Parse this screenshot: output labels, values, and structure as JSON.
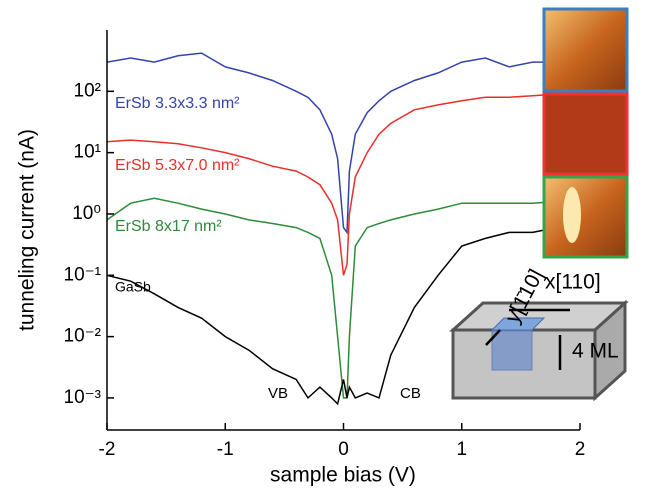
{
  "chart_data": {
    "type": "line",
    "x_label": "sample bias (V)",
    "y_label": "tunneling current (nA)",
    "yscale": "log",
    "xlim": [
      -2,
      2
    ],
    "xticks": [
      -2,
      -1,
      0,
      1,
      2
    ],
    "ylim": [
      0.0003,
      1000
    ],
    "yticks": [
      {
        "value": 0.001,
        "label": "10⁻³"
      },
      {
        "value": 0.01,
        "label": "10⁻²"
      },
      {
        "value": 0.1,
        "label": "10⁻¹"
      },
      {
        "value": 1,
        "label": "10⁰"
      },
      {
        "value": 10,
        "label": "10¹"
      },
      {
        "value": 100,
        "label": "10²"
      }
    ],
    "x": [
      -2,
      -1.8,
      -1.6,
      -1.4,
      -1.2,
      -1.0,
      -0.8,
      -0.6,
      -0.4,
      -0.3,
      -0.2,
      -0.1,
      -0.05,
      0,
      0.03,
      0.05,
      0.1,
      0.2,
      0.3,
      0.4,
      0.6,
      0.8,
      1.0,
      1.2,
      1.4,
      1.6,
      1.8,
      2
    ],
    "series": [
      {
        "name": "ErSb 3.3x3.3 nm²",
        "color": "#3344aa",
        "values": [
          300,
          350,
          300,
          380,
          420,
          250,
          200,
          150,
          100,
          80,
          50,
          20,
          8,
          0.6,
          0.5,
          5,
          20,
          45,
          70,
          100,
          150,
          200,
          300,
          350,
          250,
          300,
          300,
          350
        ]
      },
      {
        "name": "ErSb 5.3x7.0 nm²",
        "color": "#e8302a",
        "values": [
          15,
          16,
          15,
          14,
          12,
          10,
          8,
          6,
          5,
          4,
          3,
          1.5,
          0.8,
          0.1,
          0.15,
          1,
          4,
          10,
          20,
          30,
          50,
          60,
          70,
          80,
          80,
          85,
          90,
          100
        ]
      },
      {
        "name": "ErSb 8x17 nm²",
        "color": "#2e8b3a",
        "values": [
          0.8,
          1.5,
          1.8,
          1.5,
          1.2,
          1.0,
          0.8,
          0.7,
          0.6,
          0.5,
          0.4,
          0.1,
          0.01,
          0.001,
          0.001,
          0.01,
          0.3,
          0.6,
          0.7,
          0.8,
          1.0,
          1.2,
          1.5,
          1.5,
          1.5,
          1.5,
          1.6,
          1.8
        ]
      },
      {
        "name": "GaSb",
        "color": "#000000",
        "values": [
          0.1,
          0.08,
          0.05,
          0.03,
          0.02,
          0.01,
          0.006,
          0.003,
          0.002,
          0.001,
          0.0015,
          0.001,
          0.0008,
          0.002,
          0.001,
          0.0015,
          0.001,
          0.0012,
          0.001,
          0.005,
          0.03,
          0.1,
          0.3,
          0.4,
          0.5,
          0.5,
          0.6,
          0.7
        ]
      }
    ],
    "annotations": [
      "VB",
      "CB",
      "x[110]",
      "y[1̄10]",
      "4 ML"
    ]
  }
}
